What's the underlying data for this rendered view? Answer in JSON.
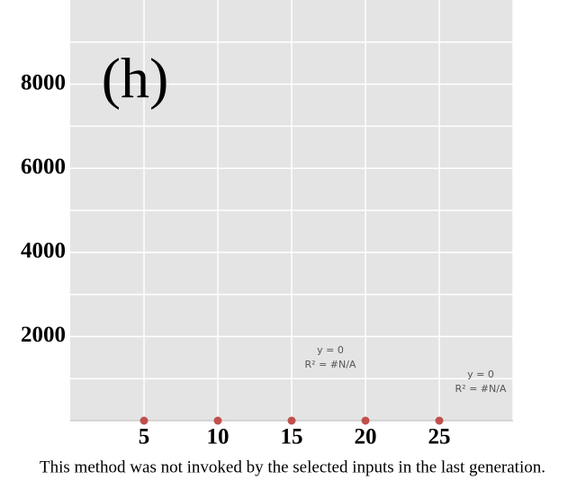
{
  "chart_data": {
    "type": "scatter",
    "panel_label": "(h)",
    "caption": "This method was not invoked by the selected inputs in the last generation.",
    "x": [
      5,
      10,
      15,
      20,
      25
    ],
    "series": [
      {
        "color": "#c0504d",
        "values": [
          0,
          0,
          0,
          0,
          0
        ]
      }
    ],
    "xlim": [
      0,
      30
    ],
    "ylim": [
      0,
      10000
    ],
    "xticks": [
      5,
      10,
      15,
      20,
      25
    ],
    "yticks": [
      2000,
      4000,
      6000,
      8000
    ],
    "y_gridlines": [
      1000,
      2000,
      3000,
      4000,
      5000,
      6000,
      7000,
      8000,
      9000
    ],
    "x_gridlines": [
      5,
      10,
      15,
      20,
      25,
      30
    ],
    "grid": true,
    "annotations": [
      {
        "lines": [
          "y = 0",
          "R² = #N/A"
        ]
      },
      {
        "lines": [
          "y = 0",
          "R² = #N/A"
        ]
      }
    ]
  }
}
